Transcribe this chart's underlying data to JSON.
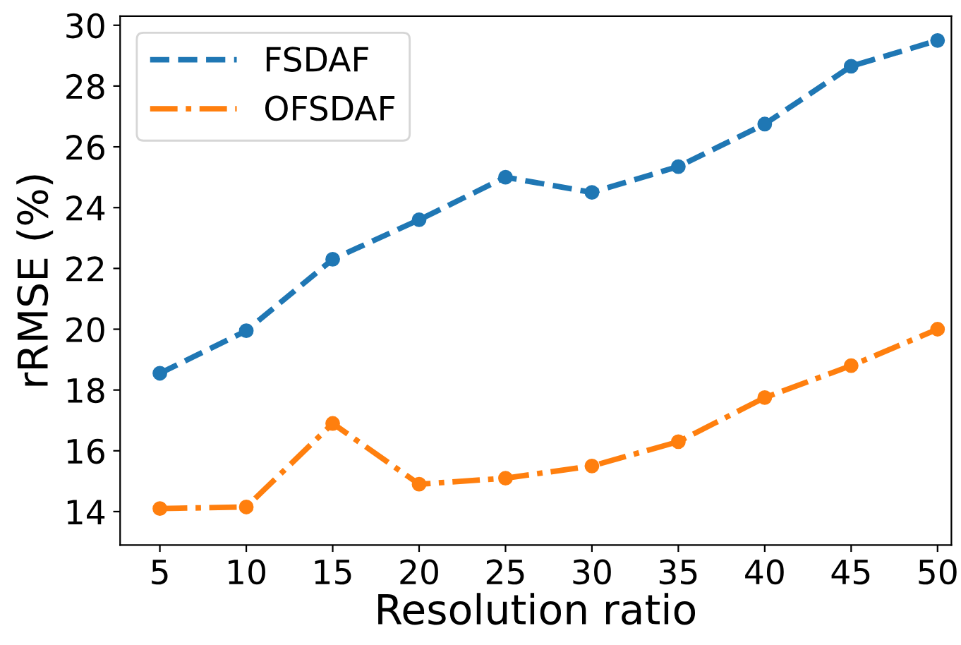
{
  "chart_data": {
    "type": "line",
    "xlabel": "Resolution ratio",
    "ylabel": "rRMSE (%)",
    "x": [
      5,
      10,
      15,
      20,
      25,
      30,
      35,
      40,
      45,
      50
    ],
    "series": [
      {
        "name": "FSDAF",
        "color": "#1f77b4",
        "line_style": "dashed",
        "values": [
          18.55,
          19.95,
          22.3,
          23.6,
          25.0,
          24.5,
          25.35,
          26.75,
          28.65,
          29.5
        ]
      },
      {
        "name": "OFSDAF",
        "color": "#ff7f0e",
        "line_style": "dashdot",
        "values": [
          14.1,
          14.15,
          16.9,
          14.9,
          15.1,
          15.5,
          16.3,
          17.75,
          18.8,
          20.0
        ]
      }
    ],
    "marker": "circle",
    "xlim": [
      2.7,
      50.8
    ],
    "ylim": [
      12.9,
      30.3
    ],
    "xticks": [
      5,
      10,
      15,
      20,
      25,
      30,
      35,
      40,
      45,
      50
    ],
    "yticks": [
      14,
      16,
      18,
      20,
      22,
      24,
      26,
      28,
      30
    ],
    "grid": false,
    "legend": "top left"
  }
}
